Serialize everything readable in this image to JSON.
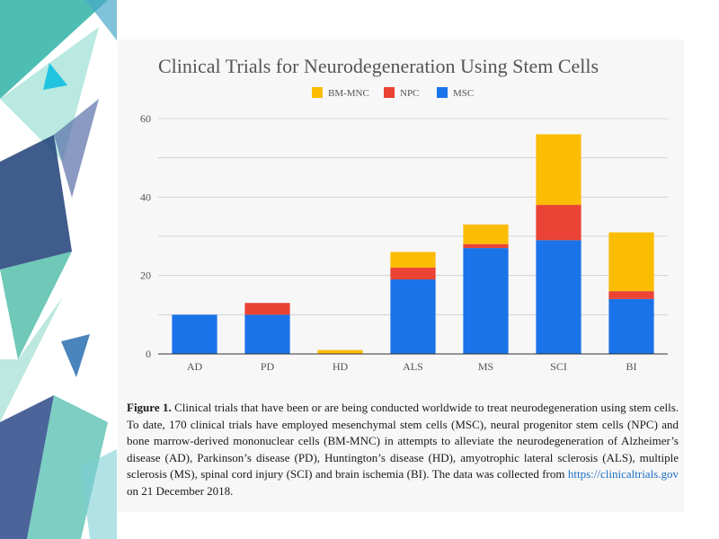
{
  "colors": {
    "bm_mnc": "#fbbc04",
    "npc": "#ea4335",
    "msc": "#1a73e8",
    "grid": "#cccccc",
    "link": "#1d6fc2"
  },
  "chart_data": {
    "type": "bar",
    "stacked": true,
    "title": "Clinical Trials for Neurodegeneration Using Stem Cells",
    "categories": [
      "AD",
      "PD",
      "HD",
      "ALS",
      "MS",
      "SCI",
      "BI"
    ],
    "series": [
      {
        "name": "MSC",
        "color": "#1a73e8",
        "values": [
          10,
          10,
          0,
          19,
          27,
          29,
          14
        ]
      },
      {
        "name": "NPC",
        "color": "#ea4335",
        "values": [
          0,
          3,
          0,
          3,
          1,
          9,
          2
        ]
      },
      {
        "name": "BM-MNC",
        "color": "#fbbc04",
        "values": [
          0,
          0,
          1,
          4,
          5,
          18,
          15
        ]
      }
    ],
    "legend": [
      "BM-MNC",
      "NPC",
      "MSC"
    ],
    "legend_position": "top-center",
    "ylim": [
      0,
      60
    ],
    "yticks": [
      0,
      20,
      40,
      60
    ],
    "grid": true
  },
  "caption": {
    "label": "Figure 1.",
    "text": " Clinical trials that have been or are being conducted worldwide to treat neurodegeneration using stem cells.  To date, 170 clinical trials have employed mesenchymal stem cells (MSC), neural progenitor stem cells (NPC) and bone marrow-derived mononuclear cells (BM-MNC) in attempts to alleviate the neurodegeneration of Alzheimer’s disease (AD), Parkinson’s disease (PD), Huntington’s disease (HD), amyotrophic lateral sclerosis (ALS), multiple sclerosis (MS), spinal cord injury (SCI) and brain ischemia (BI). The data was collected from ",
    "link": "https://clinicaltrials.gov",
    "tail": " on 21 December 2018."
  }
}
